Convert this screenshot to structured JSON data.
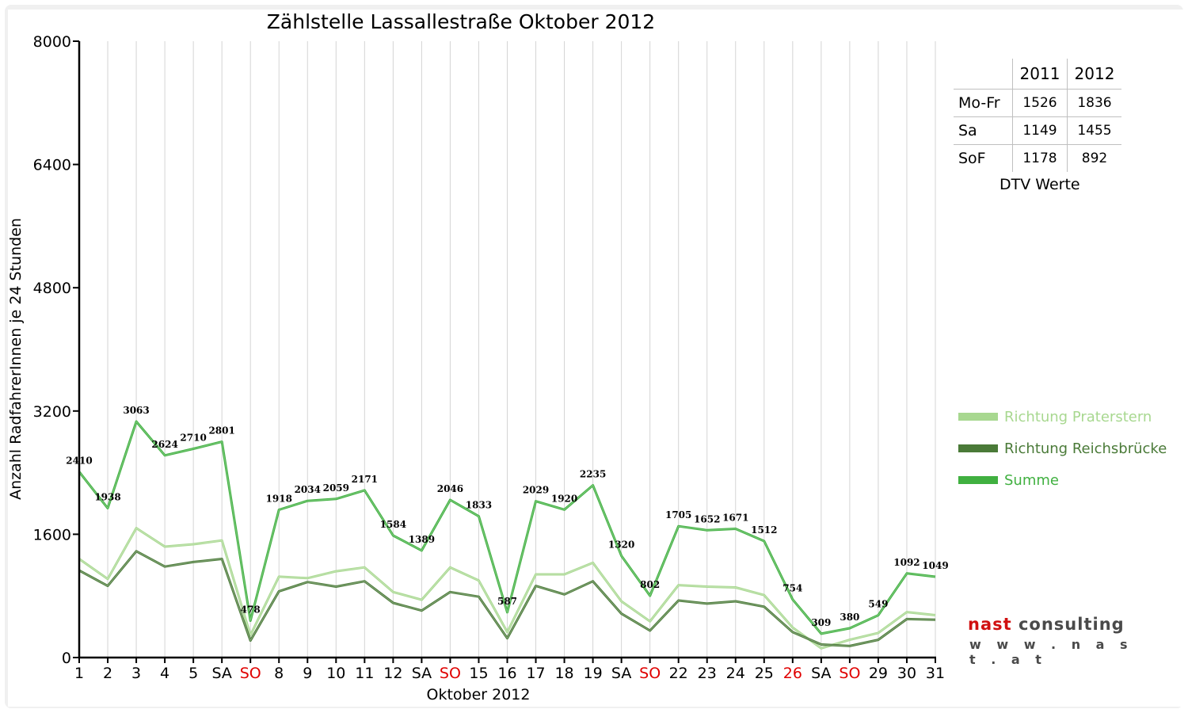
{
  "chart_data": {
    "type": "line",
    "title": "Zählstelle Lassallestraße Oktober 2012",
    "xlabel": "Oktober 2012",
    "ylabel": "Anzahl RadfahrerInnen je 24 Stunden",
    "ylim": [
      0,
      8000
    ],
    "yticks": [
      "0",
      "1600",
      "3200",
      "4800",
      "6400",
      "8000"
    ],
    "categories": [
      "1",
      "2",
      "3",
      "4",
      "5",
      "SA",
      "SO",
      "8",
      "9",
      "10",
      "11",
      "12",
      "SA",
      "SO",
      "15",
      "16",
      "17",
      "18",
      "19",
      "SA",
      "SO",
      "22",
      "23",
      "24",
      "25",
      "26",
      "SA",
      "SO",
      "29",
      "30",
      "31"
    ],
    "red_categories": [
      6,
      13,
      20,
      25,
      27
    ],
    "series": [
      {
        "name": "Richtung Praterstern",
        "color": "#a8d890",
        "values": [
          1280,
          1020,
          1680,
          1440,
          1470,
          1520,
          290,
          1050,
          1030,
          1120,
          1170,
          850,
          750,
          1170,
          1000,
          330,
          1080,
          1080,
          1230,
          730,
          470,
          940,
          920,
          910,
          810,
          390,
          120,
          230,
          320,
          590,
          550
        ]
      },
      {
        "name": "Richtung Reichsbrücke",
        "color": "#4a7a38",
        "values": [
          1130,
          930,
          1380,
          1180,
          1240,
          1280,
          220,
          860,
          980,
          920,
          990,
          710,
          610,
          850,
          790,
          250,
          930,
          820,
          990,
          570,
          350,
          740,
          700,
          730,
          660,
          330,
          170,
          150,
          230,
          500,
          490
        ]
      },
      {
        "name": "Summe",
        "color": "#40b040",
        "values": [
          2410,
          1938,
          3063,
          2624,
          2710,
          2801,
          478,
          1918,
          2034,
          2059,
          2171,
          1584,
          1389,
          2046,
          1833,
          587,
          2029,
          1920,
          2235,
          1320,
          802,
          1705,
          1652,
          1671,
          1512,
          754,
          309,
          380,
          549,
          1092,
          1049
        ]
      }
    ],
    "data_labels": [
      "2410",
      "1938",
      "3063",
      "2624",
      "2710",
      "2801",
      "478",
      "1918",
      "2034",
      "2059",
      "2171",
      "1584",
      "1389",
      "2046",
      "1833",
      "587",
      "2029",
      "1920",
      "2235",
      "1320",
      "802",
      "1705",
      "1652",
      "1671",
      "1512",
      "754",
      "309",
      "380",
      "549",
      "1092",
      "1049"
    ],
    "grid": "vertical",
    "legend_position": "right"
  },
  "dtv": {
    "headers": [
      "2011",
      "2012"
    ],
    "rows": [
      {
        "label": "Mo-Fr",
        "v2011": "1526",
        "v2012": "1836"
      },
      {
        "label": "Sa",
        "v2011": "1149",
        "v2012": "1455"
      },
      {
        "label": "SoF",
        "v2011": "1178",
        "v2012": "892"
      }
    ],
    "caption": "DTV Werte"
  },
  "logo": {
    "word1": "nast",
    "word2": "consulting",
    "url": "w w w . n a s t . a t"
  }
}
